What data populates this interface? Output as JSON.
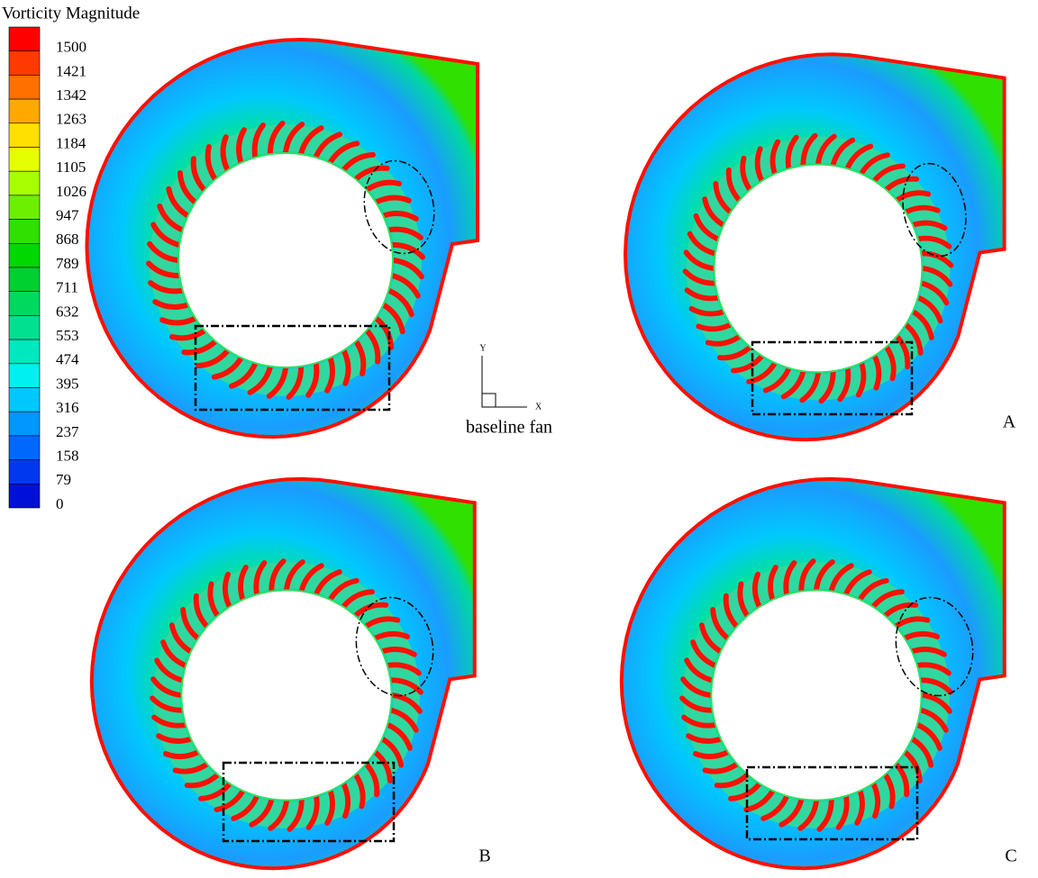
{
  "legend": {
    "title": "Vorticity Magnitude",
    "levels": [
      1500,
      1421,
      1342,
      1263,
      1184,
      1105,
      1026,
      947,
      868,
      789,
      711,
      632,
      553,
      474,
      395,
      316,
      237,
      158,
      79,
      0
    ],
    "colors": [
      "#ff0000",
      "#ff3a00",
      "#ff7000",
      "#ffa800",
      "#ffe000",
      "#e6ff00",
      "#a8ff00",
      "#6cf000",
      "#30e000",
      "#00d800",
      "#00d030",
      "#00d860",
      "#00e090",
      "#00e8c0",
      "#00f0f0",
      "#00c8ff",
      "#0098ff",
      "#0068ff",
      "#0038f0",
      "#0010d8"
    ]
  },
  "axes_indicator": {
    "y": "Y",
    "x": "X"
  },
  "panels": [
    {
      "label": "baseline fan"
    },
    {
      "label": "A"
    },
    {
      "label": "B"
    },
    {
      "label": "C"
    }
  ]
}
